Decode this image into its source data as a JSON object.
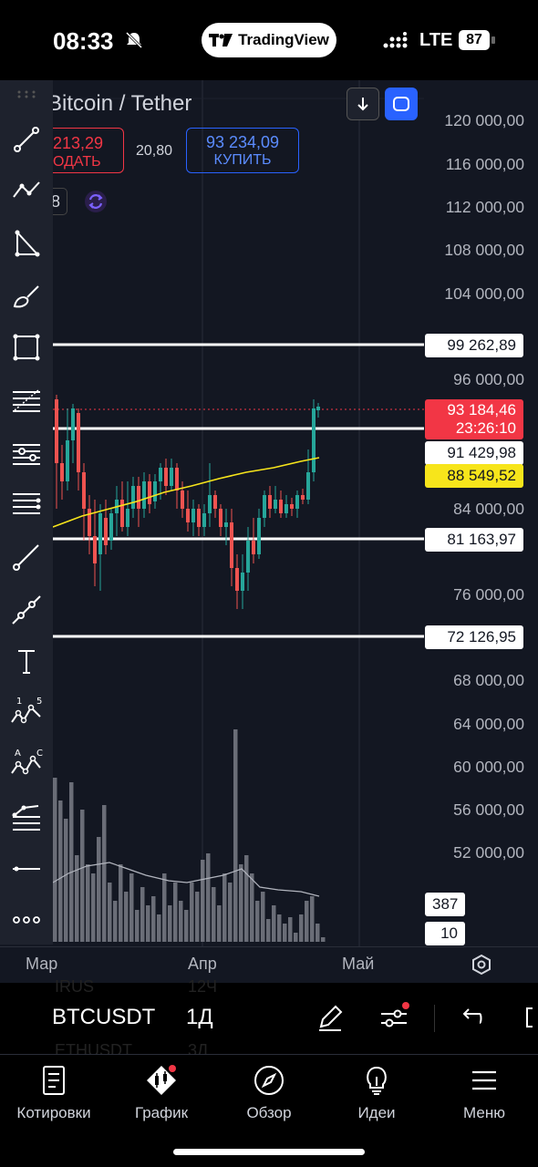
{
  "status_bar": {
    "time": "08:33",
    "app_pill": "TradingView",
    "network": "LTE",
    "battery": "87"
  },
  "chart_header": {
    "symbol_title": "Bitcoin / Tether",
    "sell_price": "213,29",
    "sell_label": "ОДАТЬ",
    "spread": "20,80",
    "buy_price": "93 234,09",
    "buy_label": "КУПИТЬ",
    "interval_chip": "8"
  },
  "price_axis": {
    "labels": [
      "120 000,00",
      "116 000,00",
      "112 000,00",
      "108 000,00",
      "104 000,00",
      "96 000,00",
      "84 000,00",
      "76 000,00",
      "68 000,00",
      "64 000,00",
      "60 000,00",
      "56 000,00",
      "52 000,00"
    ]
  },
  "levels": {
    "level_1": "99 262,89",
    "current_price": "93 184,46",
    "countdown": "23:26:10",
    "level_2": "91 429,98",
    "ma_value": "88 549,52",
    "level_3": "81 163,97",
    "level_4": "72 126,95"
  },
  "volume": {
    "value": "387",
    "ma_value": "10"
  },
  "time_axis": {
    "months": [
      "Мар",
      "Апр",
      "Май"
    ]
  },
  "symbol_bar": {
    "icon_glyph": "₿",
    "symbol": "BTCUSDT",
    "timeframe": "1Д",
    "ghost_1": "IRUS",
    "ghost_1b": "12Ч",
    "ghost_2": "ETHUSDT",
    "ghost_2b": "3Д"
  },
  "bottom_nav": {
    "items": [
      {
        "label": "Котировки"
      },
      {
        "label": "График"
      },
      {
        "label": "Обзор"
      },
      {
        "label": "Идеи"
      },
      {
        "label": "Меню"
      }
    ]
  },
  "colors": {
    "bg": "#131722",
    "up": "#26a69a",
    "down": "#ef5350",
    "ma": "#f7e51b",
    "accent": "#2962ff"
  }
}
